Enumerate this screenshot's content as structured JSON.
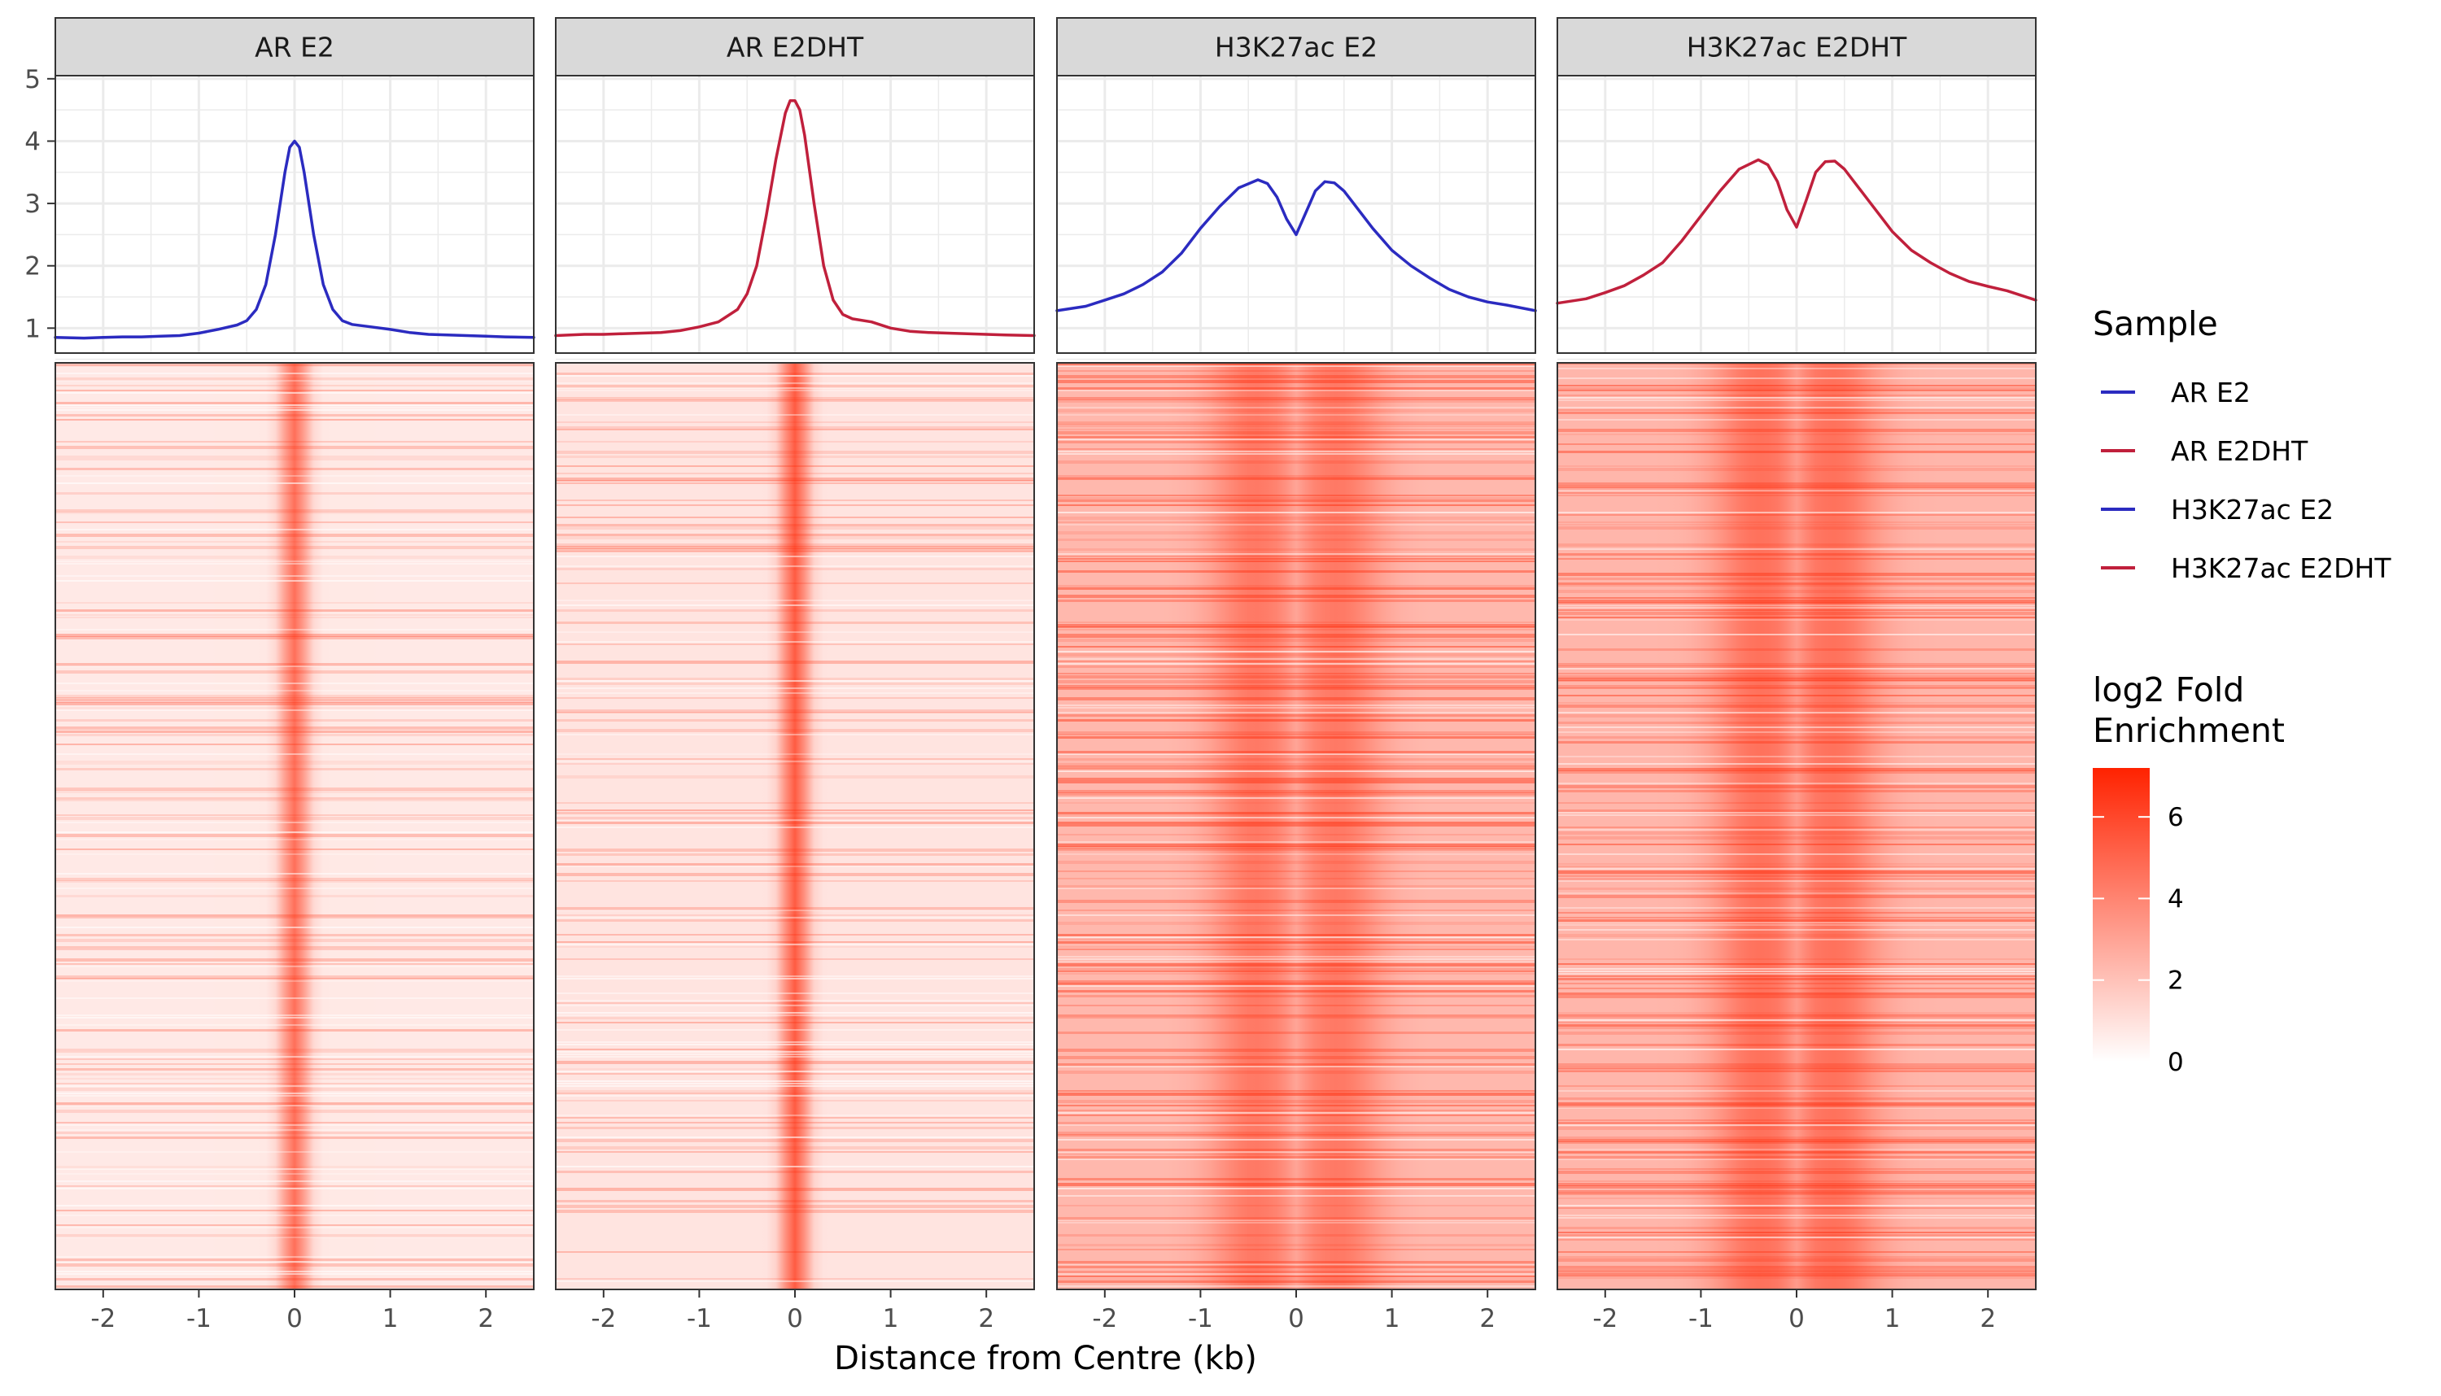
{
  "chart_data": {
    "type": "line",
    "xlabel": "Distance from Centre (kb)",
    "x_ticks": [
      -2,
      -1,
      0,
      1,
      2
    ],
    "x_tick_labels": [
      "-2",
      "-1",
      "0",
      "1",
      "2"
    ],
    "xlim": [
      -2.5,
      2.5
    ],
    "profile_ylim": [
      0.6,
      5.05
    ],
    "profile_y_ticks": [
      1,
      2,
      3,
      4,
      5
    ],
    "profile_y_tick_labels": [
      "1",
      "2",
      "3",
      "4",
      "5"
    ],
    "grid": true,
    "panels": [
      {
        "title": "AR E2",
        "color": "#2b2bc0",
        "x": [
          -2.5,
          -2.2,
          -2.0,
          -1.8,
          -1.6,
          -1.4,
          -1.2,
          -1.0,
          -0.8,
          -0.6,
          -0.5,
          -0.4,
          -0.3,
          -0.2,
          -0.1,
          -0.05,
          0.0,
          0.05,
          0.1,
          0.2,
          0.3,
          0.4,
          0.5,
          0.6,
          0.8,
          1.0,
          1.2,
          1.4,
          1.6,
          1.8,
          2.0,
          2.2,
          2.5
        ],
        "y": [
          0.85,
          0.84,
          0.85,
          0.86,
          0.86,
          0.87,
          0.88,
          0.92,
          0.98,
          1.05,
          1.12,
          1.3,
          1.7,
          2.5,
          3.5,
          3.9,
          4.0,
          3.9,
          3.5,
          2.5,
          1.7,
          1.3,
          1.12,
          1.06,
          1.02,
          0.98,
          0.93,
          0.9,
          0.89,
          0.88,
          0.87,
          0.86,
          0.85
        ]
      },
      {
        "title": "AR E2DHT",
        "color": "#c0203c",
        "x": [
          -2.5,
          -2.2,
          -2.0,
          -1.8,
          -1.6,
          -1.4,
          -1.2,
          -1.0,
          -0.8,
          -0.6,
          -0.5,
          -0.4,
          -0.3,
          -0.2,
          -0.1,
          -0.05,
          0.0,
          0.05,
          0.1,
          0.2,
          0.3,
          0.4,
          0.5,
          0.6,
          0.8,
          1.0,
          1.2,
          1.4,
          1.6,
          1.8,
          2.0,
          2.2,
          2.5
        ],
        "y": [
          0.88,
          0.9,
          0.9,
          0.91,
          0.92,
          0.93,
          0.96,
          1.02,
          1.1,
          1.3,
          1.55,
          2.0,
          2.8,
          3.7,
          4.45,
          4.65,
          4.65,
          4.5,
          4.1,
          3.0,
          2.0,
          1.45,
          1.22,
          1.15,
          1.1,
          1.0,
          0.95,
          0.93,
          0.92,
          0.91,
          0.9,
          0.89,
          0.88
        ]
      },
      {
        "title": "H3K27ac E2",
        "color": "#2b2bc0",
        "x": [
          -2.5,
          -2.2,
          -2.0,
          -1.8,
          -1.6,
          -1.4,
          -1.2,
          -1.0,
          -0.8,
          -0.6,
          -0.4,
          -0.3,
          -0.2,
          -0.1,
          0.0,
          0.1,
          0.2,
          0.3,
          0.4,
          0.5,
          0.6,
          0.8,
          1.0,
          1.2,
          1.4,
          1.6,
          1.8,
          2.0,
          2.2,
          2.5
        ],
        "y": [
          1.28,
          1.35,
          1.45,
          1.55,
          1.7,
          1.9,
          2.2,
          2.6,
          2.95,
          3.25,
          3.38,
          3.32,
          3.1,
          2.75,
          2.5,
          2.85,
          3.2,
          3.35,
          3.33,
          3.2,
          3.0,
          2.6,
          2.25,
          2.0,
          1.8,
          1.62,
          1.5,
          1.42,
          1.37,
          1.28
        ]
      },
      {
        "title": "H3K27ac E2DHT",
        "color": "#c0203c",
        "x": [
          -2.5,
          -2.2,
          -2.0,
          -1.8,
          -1.6,
          -1.4,
          -1.2,
          -1.0,
          -0.8,
          -0.6,
          -0.4,
          -0.3,
          -0.2,
          -0.1,
          0.0,
          0.1,
          0.2,
          0.3,
          0.4,
          0.5,
          0.6,
          0.8,
          1.0,
          1.2,
          1.4,
          1.6,
          1.8,
          2.0,
          2.2,
          2.5
        ],
        "y": [
          1.4,
          1.47,
          1.57,
          1.68,
          1.85,
          2.05,
          2.4,
          2.8,
          3.2,
          3.55,
          3.7,
          3.62,
          3.35,
          2.9,
          2.62,
          3.05,
          3.5,
          3.67,
          3.68,
          3.55,
          3.35,
          2.95,
          2.55,
          2.25,
          2.05,
          1.88,
          1.75,
          1.67,
          1.6,
          1.45
        ]
      }
    ],
    "legends": {
      "sample": {
        "title": "Sample",
        "entries": [
          {
            "label": "AR E2",
            "color": "#2b2bc0"
          },
          {
            "label": "AR E2DHT",
            "color": "#c0203c"
          },
          {
            "label": "H3K27ac E2",
            "color": "#2b2bc0"
          },
          {
            "label": "H3K27ac E2DHT",
            "color": "#c0203c"
          }
        ]
      },
      "fill": {
        "title_line1": "log2 Fold",
        "title_line2": "Enrichment",
        "range": [
          0,
          7.2
        ],
        "ticks": [
          0,
          2,
          4,
          6
        ],
        "tick_labels": [
          "0",
          "2",
          "4",
          "6"
        ],
        "low_color": "#ffffff",
        "high_color": "#ff2200"
      }
    },
    "heatmap_colors": {
      "low": "#ffffff",
      "high": "#ff2200"
    }
  }
}
